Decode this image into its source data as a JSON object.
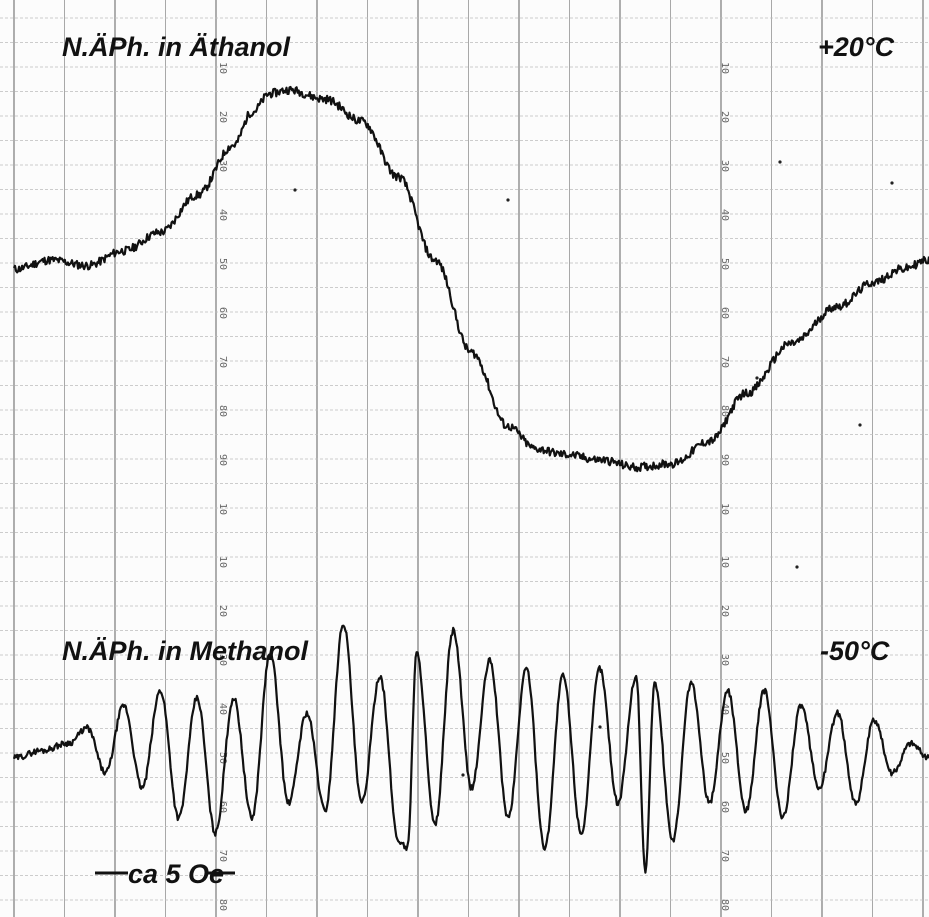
{
  "chart_data": [
    {
      "type": "line",
      "panel": "upper",
      "title": "N.ÄPh. in Äthanol",
      "annotation": "+20°C",
      "chart_scale_ticks": [
        "10",
        "20",
        "30",
        "40",
        "50",
        "60",
        "70",
        "80",
        "90",
        "10"
      ],
      "series": [
        {
          "x": [
            0,
            4,
            8,
            12,
            16,
            20,
            24,
            26,
            28,
            30,
            34,
            38,
            42,
            46,
            50,
            54,
            57,
            60,
            64,
            68,
            72,
            76,
            80,
            85,
            90,
            94,
            97,
            100
          ],
          "y": [
            -0.05,
            0.0,
            -0.03,
            0.05,
            0.15,
            0.35,
            0.62,
            0.8,
            0.9,
            0.92,
            0.87,
            0.75,
            0.45,
            0.0,
            -0.5,
            -0.9,
            -1.02,
            -1.05,
            -1.08,
            -1.12,
            -1.1,
            -0.98,
            -0.72,
            -0.45,
            -0.25,
            -0.12,
            -0.05,
            0.0
          ]
        }
      ],
      "grid": true,
      "legend": "none"
    },
    {
      "type": "line",
      "panel": "lower",
      "title": "N.ÄPh. in Methanol",
      "annotation": "-50°C",
      "scale_label": "ca 5 Oe",
      "chart_scale_ticks": [
        "10",
        "20",
        "30",
        "40",
        "50",
        "60",
        "70",
        "80"
      ],
      "series": [
        {
          "x": [
            0,
            3,
            6,
            8,
            10,
            12,
            14,
            16,
            18,
            20,
            22,
            24,
            26,
            28,
            30,
            32,
            34,
            36,
            38,
            40,
            42,
            43,
            44,
            46,
            48,
            50,
            52,
            54,
            56,
            58,
            60,
            62,
            64,
            66,
            68,
            69,
            70,
            72,
            74,
            76,
            78,
            80,
            82,
            84,
            86,
            88,
            90,
            92,
            94,
            96,
            98,
            100
          ],
          "y": [
            0.0,
            0.05,
            0.1,
            0.2,
            -0.1,
            0.35,
            -0.2,
            0.45,
            -0.4,
            0.4,
            -0.5,
            0.4,
            -0.4,
            0.7,
            -0.3,
            0.3,
            -0.35,
            0.9,
            -0.3,
            0.55,
            -0.55,
            -0.6,
            0.7,
            -0.45,
            0.85,
            -0.2,
            0.65,
            -0.4,
            0.6,
            -0.6,
            0.55,
            -0.5,
            0.6,
            -0.3,
            0.55,
            -0.75,
            0.5,
            -0.55,
            0.5,
            -0.3,
            0.45,
            -0.35,
            0.45,
            -0.4,
            0.35,
            -0.2,
            0.3,
            -0.3,
            0.25,
            -0.1,
            0.1,
            0.0
          ]
        }
      ],
      "grid": true,
      "legend": "none"
    }
  ]
}
